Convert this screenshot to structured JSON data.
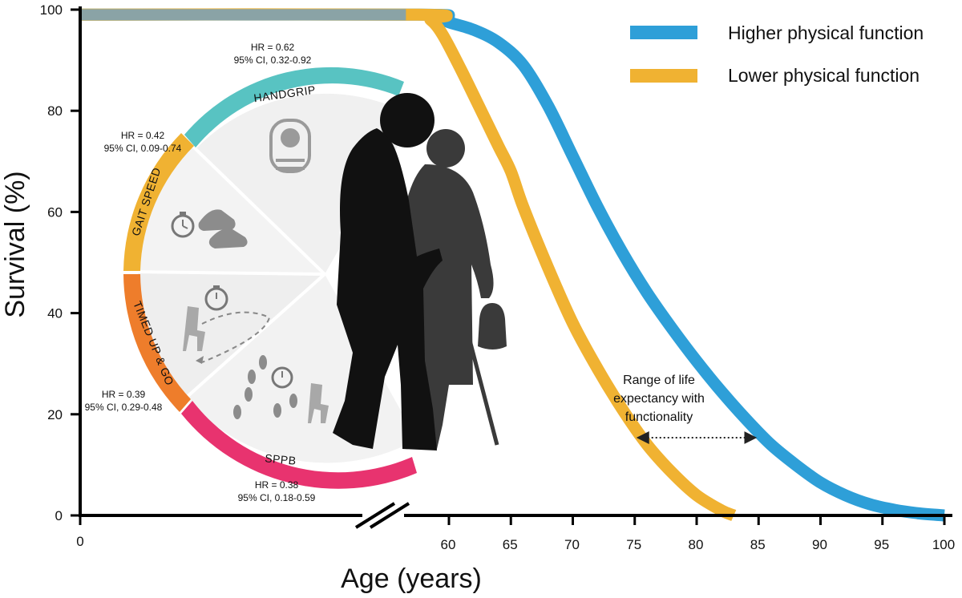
{
  "chart_data": {
    "type": "line",
    "xlabel": "Age (years)",
    "ylabel": "Survival (%)",
    "ylim": [
      0,
      100
    ],
    "x_ticks": [
      0,
      60,
      65,
      70,
      75,
      80,
      85,
      90,
      95,
      100
    ],
    "y_ticks": [
      0,
      20,
      40,
      60,
      80,
      100
    ],
    "axis_break": "x, between 0 and 60",
    "grid": false,
    "legend_position": "top-right",
    "series": [
      {
        "name": "Higher physical function",
        "color": "#2e9fd8",
        "x": [
          0,
          55,
          58,
          60,
          62,
          64,
          66,
          68,
          70,
          72,
          74,
          76,
          78,
          80,
          82,
          84,
          86,
          88,
          90,
          92,
          94,
          96,
          98,
          100
        ],
        "y": [
          99,
          99,
          98.5,
          97.5,
          96,
          93.5,
          89,
          81,
          71,
          61,
          52,
          44,
          37,
          30.5,
          24.5,
          19,
          14,
          10,
          6.5,
          4,
          2.2,
          1.1,
          0.4,
          0
        ]
      },
      {
        "name": "Lower physical function",
        "color": "#f0b232",
        "x": [
          0,
          55,
          57,
          59,
          61,
          63,
          64,
          65,
          66,
          68,
          70,
          72,
          74,
          76,
          78,
          80,
          82,
          83
        ],
        "y": [
          99,
          99,
          98,
          95,
          88,
          78,
          73,
          68,
          61,
          49,
          38,
          29,
          21,
          14,
          8.5,
          4,
          1,
          0
        ]
      }
    ],
    "annotation": {
      "lines": [
        "Range of life",
        "expectancy with",
        "functionality"
      ],
      "range": [
        75,
        85
      ]
    }
  },
  "wheel": {
    "segments": [
      {
        "label": "HANDGRIP",
        "color": "#58c3c2",
        "hr_line1": "HR = 0.62",
        "hr_line2": "95% CI, 0.32-0.92",
        "icon": "dynamometer-icon"
      },
      {
        "label": "GAIT SPEED",
        "color": "#f0b232",
        "hr_line1": "HR = 0.42",
        "hr_line2": "95% CI, 0.09-0.74",
        "icon": "stopwatch-shoes-icon"
      },
      {
        "label": "TIMED UP & GO",
        "color": "#ee7d2b",
        "hr_line1": "HR = 0.39",
        "hr_line2": "95% CI, 0.29-0.48",
        "icon": "chair-stopwatch-icon"
      },
      {
        "label": "SPPB",
        "color": "#e8336f",
        "hr_line1": "HR = 0.38",
        "hr_line2": "95% CI, 0.18-0.59",
        "icon": "footsteps-chair-icon"
      }
    ]
  }
}
